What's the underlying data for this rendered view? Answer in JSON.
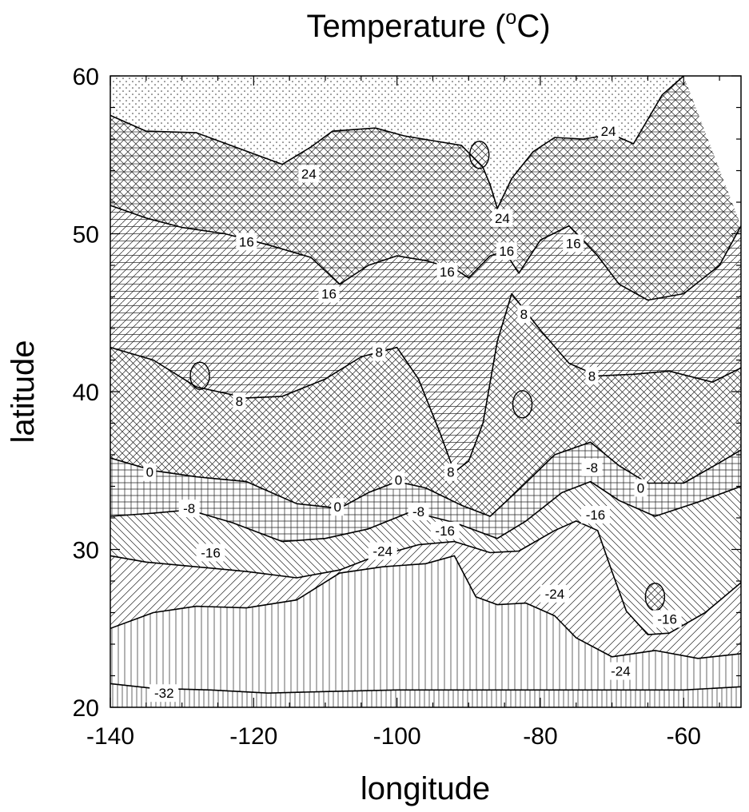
{
  "chart_data": {
    "type": "contour",
    "title_main": "Temperature (",
    "title_sup": "o",
    "title_end": "C)",
    "xlabel": "longitude",
    "ylabel": "latitude",
    "xlim": [
      -140,
      -52
    ],
    "ylim": [
      20,
      60
    ],
    "xticks": [
      -140,
      -120,
      -100,
      -80,
      -60
    ],
    "yticks": [
      20,
      30,
      40,
      50,
      60
    ],
    "levels": [
      -32,
      -24,
      -16,
      -8,
      0,
      8,
      16,
      24
    ],
    "contours": [
      {
        "level": 24,
        "points": [
          [
            -140,
            57.5
          ],
          [
            -135,
            56.5
          ],
          [
            -128,
            56.4
          ],
          [
            -122,
            55.4
          ],
          [
            -116,
            54.4
          ],
          [
            -112,
            55.5
          ],
          [
            -109,
            56.5
          ],
          [
            -103,
            56.7
          ],
          [
            -99,
            56.2
          ],
          [
            -95,
            55.9
          ],
          [
            -91,
            55.6
          ],
          [
            -88,
            54.2
          ],
          [
            -87,
            53.1
          ],
          [
            -86,
            51.6
          ],
          [
            -84,
            53.5
          ],
          [
            -81,
            55.2
          ],
          [
            -78,
            56.1
          ],
          [
            -74,
            56.0
          ],
          [
            -70,
            56.3
          ],
          [
            -67,
            55.7
          ],
          [
            -63,
            58.8
          ],
          [
            -60,
            60
          ]
        ]
      },
      {
        "level": 16,
        "points": [
          [
            -140,
            51.8
          ],
          [
            -135,
            51.0
          ],
          [
            -130,
            50.4
          ],
          [
            -124,
            50.0
          ],
          [
            -118,
            49.3
          ],
          [
            -112,
            48.5
          ],
          [
            -108,
            46.8
          ],
          [
            -104,
            48.0
          ],
          [
            -100,
            48.6
          ],
          [
            -96,
            48.3
          ],
          [
            -92,
            47.8
          ],
          [
            -90,
            47.2
          ],
          [
            -87,
            48.6
          ],
          [
            -85,
            48.9
          ],
          [
            -83,
            47.5
          ],
          [
            -80,
            49.6
          ],
          [
            -76,
            50.5
          ],
          [
            -72,
            48.6
          ],
          [
            -69,
            46.8
          ],
          [
            -65,
            45.8
          ],
          [
            -60,
            46.2
          ],
          [
            -55,
            48.0
          ],
          [
            -52,
            50.5
          ]
        ]
      },
      {
        "level": 8,
        "points": [
          [
            -140,
            42.8
          ],
          [
            -134,
            42.0
          ],
          [
            -128,
            40.3
          ],
          [
            -121,
            39.6
          ],
          [
            -116,
            39.7
          ],
          [
            -110,
            40.8
          ],
          [
            -105,
            42.2
          ],
          [
            -100,
            42.8
          ],
          [
            -97,
            40.8
          ],
          [
            -94,
            37.4
          ],
          [
            -92,
            34.9
          ],
          [
            -90,
            35.6
          ],
          [
            -88,
            38.0
          ],
          [
            -86,
            43.2
          ],
          [
            -84,
            46.2
          ],
          [
            -80,
            43.9
          ],
          [
            -76,
            41.8
          ],
          [
            -72,
            41.0
          ],
          [
            -67,
            41.1
          ],
          [
            -62,
            41.3
          ],
          [
            -56,
            40.6
          ],
          [
            -52,
            41.5
          ]
        ]
      },
      {
        "level": 0,
        "points": [
          [
            -140,
            35.8
          ],
          [
            -134,
            35.0
          ],
          [
            -128,
            34.6
          ],
          [
            -121,
            34.3
          ],
          [
            -114,
            32.9
          ],
          [
            -108,
            32.6
          ],
          [
            -104,
            33.6
          ],
          [
            -100,
            34.3
          ],
          [
            -96,
            33.9
          ],
          [
            -91,
            32.8
          ],
          [
            -87,
            32.1
          ],
          [
            -83,
            33.8
          ],
          [
            -78,
            36.0
          ],
          [
            -73,
            36.8
          ],
          [
            -69,
            35.3
          ],
          [
            -65,
            34.2
          ],
          [
            -60,
            34.2
          ],
          [
            -55,
            35.5
          ],
          [
            -52,
            36.3
          ]
        ]
      },
      {
        "level": -8,
        "points": [
          [
            -140,
            32.1
          ],
          [
            -134,
            32.3
          ],
          [
            -129,
            32.5
          ],
          [
            -123,
            31.7
          ],
          [
            -116,
            30.5
          ],
          [
            -110,
            30.7
          ],
          [
            -104,
            31.3
          ],
          [
            -98,
            32.4
          ],
          [
            -92,
            31.7
          ],
          [
            -86,
            30.7
          ],
          [
            -82,
            31.8
          ],
          [
            -77,
            33.6
          ],
          [
            -73,
            34.3
          ],
          [
            -69,
            33.1
          ],
          [
            -64,
            32.1
          ],
          [
            -58,
            33.0
          ],
          [
            -52,
            34.0
          ]
        ]
      },
      {
        "level": -16,
        "points": [
          [
            -140,
            29.6
          ],
          [
            -135,
            29.2
          ],
          [
            -128,
            28.9
          ],
          [
            -121,
            28.6
          ],
          [
            -114,
            28.2
          ],
          [
            -108,
            28.7
          ],
          [
            -104,
            29.4
          ],
          [
            -97,
            30.3
          ],
          [
            -92,
            30.5
          ],
          [
            -87,
            29.8
          ],
          [
            -83,
            29.9
          ],
          [
            -78,
            31.2
          ],
          [
            -75,
            31.8
          ],
          [
            -72,
            31.2
          ],
          [
            -70,
            28.6
          ],
          [
            -68,
            26.1
          ],
          [
            -65,
            24.6
          ],
          [
            -62,
            24.7
          ],
          [
            -57,
            26.0
          ],
          [
            -52,
            27.9
          ]
        ]
      },
      {
        "level": -24,
        "points": [
          [
            -140,
            25.0
          ],
          [
            -134,
            26.0
          ],
          [
            -128,
            26.4
          ],
          [
            -121,
            26.3
          ],
          [
            -114,
            26.8
          ],
          [
            -108,
            28.5
          ],
          [
            -102,
            28.9
          ],
          [
            -96,
            29.1
          ],
          [
            -92,
            29.6
          ],
          [
            -89,
            27.0
          ],
          [
            -86,
            26.5
          ],
          [
            -82,
            26.6
          ],
          [
            -78,
            25.8
          ],
          [
            -75,
            24.4
          ],
          [
            -70,
            23.2
          ],
          [
            -64,
            23.6
          ],
          [
            -58,
            23.1
          ],
          [
            -52,
            23.4
          ]
        ]
      },
      {
        "level": -32,
        "points": [
          [
            -140,
            21.5
          ],
          [
            -134,
            21.2
          ],
          [
            -126,
            21.1
          ],
          [
            -118,
            20.9
          ],
          [
            -110,
            21.0
          ],
          [
            -100,
            21.1
          ],
          [
            -90,
            21.1
          ],
          [
            -80,
            21.1
          ],
          [
            -70,
            21.1
          ],
          [
            -60,
            21.1
          ],
          [
            -52,
            21.3
          ]
        ]
      }
    ],
    "labels": [
      {
        "text": "24",
        "lon": -112.3,
        "lat": 53.8
      },
      {
        "text": "24",
        "lon": -85.3,
        "lat": 51.0
      },
      {
        "text": "24",
        "lon": -70.5,
        "lat": 56.5
      },
      {
        "text": "16",
        "lon": -121.0,
        "lat": 49.5
      },
      {
        "text": "16",
        "lon": -109.5,
        "lat": 46.2
      },
      {
        "text": "16",
        "lon": -93.0,
        "lat": 47.6
      },
      {
        "text": "16",
        "lon": -84.7,
        "lat": 48.9
      },
      {
        "text": "16",
        "lon": -75.4,
        "lat": 49.4
      },
      {
        "text": "8",
        "lon": -122.0,
        "lat": 39.4
      },
      {
        "text": "8",
        "lon": -102.5,
        "lat": 42.5
      },
      {
        "text": "8",
        "lon": -82.3,
        "lat": 44.9
      },
      {
        "text": "8",
        "lon": -72.8,
        "lat": 41.0
      },
      {
        "text": "8",
        "lon": -92.5,
        "lat": 34.9
      },
      {
        "text": "0",
        "lon": -134.5,
        "lat": 34.9
      },
      {
        "text": "0",
        "lon": -108.3,
        "lat": 32.7
      },
      {
        "text": "0",
        "lon": -99.8,
        "lat": 34.4
      },
      {
        "text": "0",
        "lon": -66.0,
        "lat": 33.9
      },
      {
        "text": "-8",
        "lon": -129.0,
        "lat": 32.6
      },
      {
        "text": "-8",
        "lon": -97.0,
        "lat": 32.4
      },
      {
        "text": "-8",
        "lon": -72.8,
        "lat": 35.2
      },
      {
        "text": "-16",
        "lon": -126.0,
        "lat": 29.8
      },
      {
        "text": "-16",
        "lon": -93.3,
        "lat": 31.2
      },
      {
        "text": "-16",
        "lon": -72.3,
        "lat": 32.2
      },
      {
        "text": "-16",
        "lon": -62.3,
        "lat": 25.6
      },
      {
        "text": "-24",
        "lon": -102.0,
        "lat": 29.9
      },
      {
        "text": "-24",
        "lon": -78.0,
        "lat": 27.2
      },
      {
        "text": "-24",
        "lon": -68.8,
        "lat": 22.3
      },
      {
        "text": "-32",
        "lon": -132.5,
        "lat": 20.9
      }
    ],
    "cells": [
      {
        "lon": -82.5,
        "lat": 39.2
      },
      {
        "lon": -127.5,
        "lat": 41.0
      },
      {
        "lon": -64.0,
        "lat": 27.0
      },
      {
        "lon": -88.5,
        "lat": 55.0
      }
    ]
  }
}
